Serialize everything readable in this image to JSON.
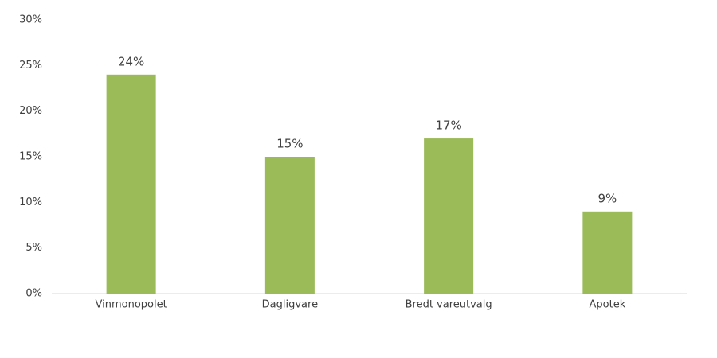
{
  "chart_data": {
    "type": "bar",
    "categories": [
      "Vinmonopolet",
      "Dagligvare",
      "Bredt vareutvalg",
      "Apotek"
    ],
    "values": [
      24,
      15,
      17,
      9
    ],
    "value_labels": [
      "24%",
      "15%",
      "17%",
      "9%"
    ],
    "color": "#9bbb59",
    "ylim": [
      0,
      30
    ],
    "yticks": [
      {
        "value": 0,
        "label": "0%"
      },
      {
        "value": 5,
        "label": "5%"
      },
      {
        "value": 10,
        "label": "10%"
      },
      {
        "value": 15,
        "label": "15%"
      },
      {
        "value": 20,
        "label": "20%"
      },
      {
        "value": 25,
        "label": "25%"
      },
      {
        "value": 30,
        "label": "30%"
      }
    ]
  }
}
